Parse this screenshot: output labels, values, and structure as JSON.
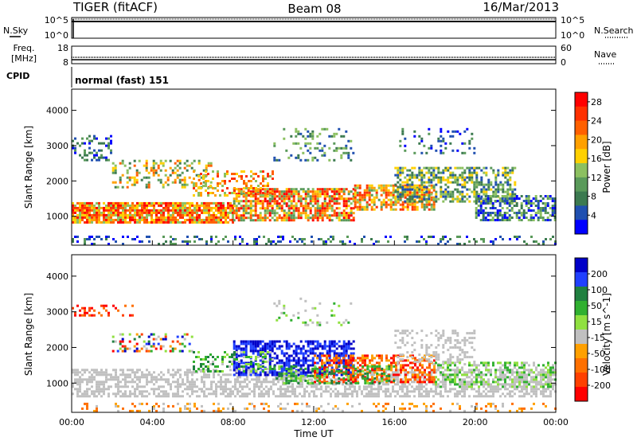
{
  "header": {
    "title": "TIGER (fitACF)",
    "beam": "Beam 08",
    "date": "16/Mar/2013"
  },
  "side_labels": {
    "nsky": "N.Sky",
    "nsearch": "N.Search",
    "freq_line1": "Freq.",
    "freq_line2": "[MHz]",
    "nave": "Nave",
    "cpid": "CPID"
  },
  "mode_text": "normal (fast) 151",
  "strip_panels": {
    "noise": {
      "left_ticks": [
        "10^5",
        "10^0"
      ],
      "right_ticks": [
        "10^5",
        "10^0"
      ]
    },
    "freq": {
      "left_ticks": [
        "18",
        "8"
      ],
      "right_ticks": [
        "60",
        "0"
      ]
    }
  },
  "colors": {
    "power_scale": [
      "#0000ff",
      "#2050b0",
      "#3c7a50",
      "#5a9a5a",
      "#8cc060",
      "#ffd000",
      "#ffa000",
      "#ff6000",
      "#ff3000",
      "#ff0000"
    ],
    "velocity_scale": [
      "#0000c8",
      "#2040ff",
      "#208040",
      "#30b030",
      "#90e040",
      "#c0c0c0",
      "#ffa000",
      "#ff7000",
      "#ff4000",
      "#ff0000"
    ]
  },
  "chart_data": [
    {
      "type": "heatmap",
      "title": "",
      "xlabel": "Time UT",
      "ylabel": "Slant Range [km]",
      "x_ticks": [
        "00:00",
        "04:00",
        "08:00",
        "12:00",
        "16:00",
        "20:00",
        "00:00"
      ],
      "y_ticks": [
        "1000",
        "2000",
        "3000",
        "4000"
      ],
      "xlim_hours": [
        0,
        24
      ],
      "ylim": [
        180,
        4600
      ],
      "colorbar": {
        "label": "Power [dB]",
        "ticks": [
          "4",
          "8",
          "12",
          "16",
          "20",
          "24",
          "28"
        ],
        "range": [
          0,
          30
        ]
      }
    },
    {
      "type": "heatmap",
      "title": "",
      "xlabel": "Time UT",
      "ylabel": "Slant Range [km]",
      "x_ticks": [
        "00:00",
        "04:00",
        "08:00",
        "12:00",
        "16:00",
        "20:00",
        "00:00"
      ],
      "y_ticks": [
        "1000",
        "2000",
        "3000",
        "4000"
      ],
      "xlim_hours": [
        0,
        24
      ],
      "ylim": [
        180,
        4600
      ],
      "colorbar": {
        "label": "Velocity [m s^-1]",
        "ticks": [
          "200",
          "100",
          "50",
          "15",
          "-15",
          "-50",
          "-100",
          "-200"
        ]
      }
    }
  ]
}
